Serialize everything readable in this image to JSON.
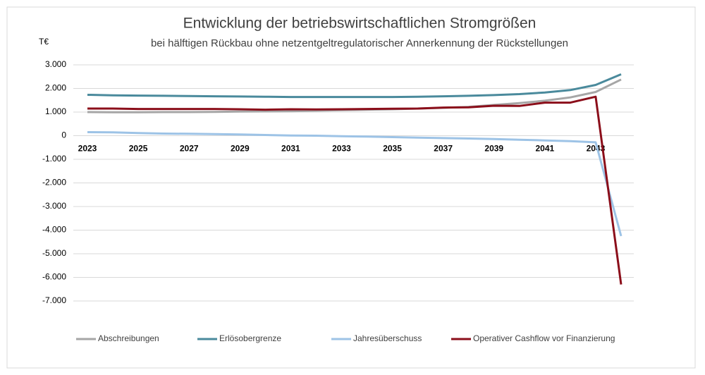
{
  "chart_data": {
    "type": "line",
    "title": "Entwicklung der betriebswirtschaftlichen Stromgrößen",
    "subtitle": "bei hälftigen Rückbau ohne netzentgeltregulatorischer Annerkennung der Rückstellungen",
    "y_label": "T€",
    "categories": [
      "2023",
      null,
      "2025",
      null,
      "2027",
      null,
      "2029",
      null,
      "2031",
      null,
      "2033",
      null,
      "2035",
      null,
      "2037",
      null,
      "2039",
      null,
      "2041",
      null,
      "2043",
      null
    ],
    "series": [
      {
        "name": "Abschreibungen",
        "color": "#a6a6a6",
        "values": [
          1000,
          990,
          990,
          1000,
          1000,
          1010,
          1020,
          1030,
          1040,
          1060,
          1080,
          1100,
          1120,
          1150,
          1180,
          1220,
          1300,
          1380,
          1480,
          1620,
          1850,
          2380
        ]
      },
      {
        "name": "Erlösobergrenze",
        "color": "#4a8a9c",
        "values": [
          1730,
          1710,
          1700,
          1690,
          1680,
          1670,
          1660,
          1650,
          1640,
          1640,
          1640,
          1640,
          1640,
          1650,
          1670,
          1690,
          1720,
          1760,
          1830,
          1930,
          2150,
          2600
        ]
      },
      {
        "name": "Jahresüberschuss",
        "color": "#9dc3e6",
        "values": [
          150,
          140,
          110,
          90,
          80,
          70,
          50,
          30,
          10,
          0,
          -20,
          -40,
          -60,
          -80,
          -100,
          -120,
          -140,
          -170,
          -200,
          -230,
          -280,
          -4250
        ]
      },
      {
        "name": "Operativer Cashflow vor Finanzierung",
        "color": "#8b0e1a",
        "values": [
          1150,
          1150,
          1130,
          1130,
          1130,
          1130,
          1120,
          1100,
          1120,
          1110,
          1120,
          1130,
          1140,
          1150,
          1190,
          1200,
          1270,
          1260,
          1400,
          1400,
          1650,
          -6300
        ]
      }
    ],
    "ylim": [
      -7000,
      3000
    ],
    "yticks": [
      {
        "value": 3000,
        "label": "3.000"
      },
      {
        "value": 2000,
        "label": "2.000"
      },
      {
        "value": 1000,
        "label": "1.000"
      },
      0,
      {
        "value": -1000,
        "label": "-1.000"
      },
      {
        "value": -2000,
        "label": "-2.000"
      },
      {
        "value": -3000,
        "label": "-3.000"
      },
      {
        "value": -4000,
        "label": "-4.000"
      },
      {
        "value": -5000,
        "label": "-5.000"
      },
      {
        "value": -6000,
        "label": "-6.000"
      },
      {
        "value": -7000,
        "label": "-7.000"
      }
    ],
    "grid": true,
    "legend": "bottom"
  }
}
